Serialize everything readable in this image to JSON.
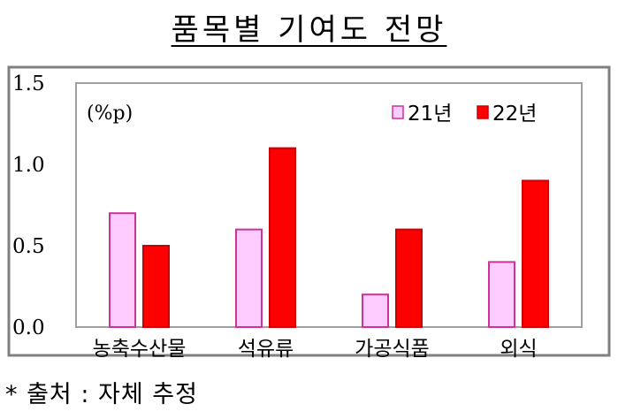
{
  "title": "품목별 기여도 전망",
  "source_note": "* 출처 : 자체 추정",
  "chart_data": {
    "type": "bar",
    "unit": "(%p)",
    "categories": [
      "농축수산물",
      "석유류",
      "가공식품",
      "외식"
    ],
    "series": [
      {
        "name": "21년",
        "values": [
          0.7,
          0.6,
          0.2,
          0.4
        ],
        "color": "#ffccff",
        "stroke": "#cc3399"
      },
      {
        "name": "22년",
        "values": [
          0.5,
          1.1,
          0.6,
          0.9
        ],
        "color": "#ff0000",
        "stroke": "#cc0000"
      }
    ],
    "yticks": [
      "0.0",
      "0.5",
      "1.0",
      "1.5"
    ],
    "ylim": [
      0,
      1.5
    ],
    "grid": false,
    "legend_position": "top-right"
  }
}
